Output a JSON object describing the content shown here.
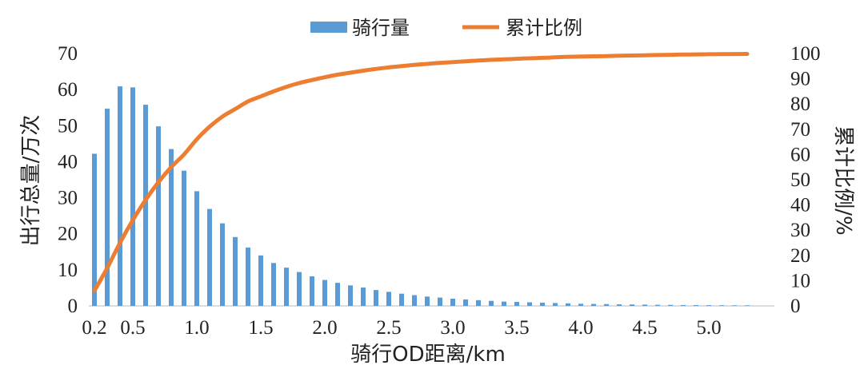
{
  "chart_data": {
    "type": "bar",
    "legend": {
      "placement": "top-center",
      "entries": [
        "骑行量",
        "累计比例"
      ]
    },
    "xlabel": "骑行OD距离/km",
    "ylabel_left": "出行总量/万次",
    "ylabel_right": "累计比例/%",
    "x": [
      0.2,
      0.3,
      0.4,
      0.5,
      0.6,
      0.7,
      0.8,
      0.9,
      1.0,
      1.1,
      1.2,
      1.3,
      1.4,
      1.5,
      1.6,
      1.7,
      1.8,
      1.9,
      2.0,
      2.1,
      2.2,
      2.3,
      2.4,
      2.5,
      2.6,
      2.7,
      2.8,
      2.9,
      3.0,
      3.1,
      3.2,
      3.3,
      3.4,
      3.5,
      3.6,
      3.7,
      3.8,
      3.9,
      4.0,
      4.1,
      4.2,
      4.3,
      4.4,
      4.5,
      4.6,
      4.7,
      4.8,
      4.9,
      5.0,
      5.1,
      5.2,
      5.3
    ],
    "x_tick_labels": [
      "0.2",
      "0.5",
      "1.0",
      "1.5",
      "2.0",
      "2.5",
      "3.0",
      "3.5",
      "4.0",
      "4.5",
      "5.0"
    ],
    "y_left_ticks": [
      "0",
      "10",
      "20",
      "30",
      "40",
      "50",
      "60",
      "70"
    ],
    "y_right_ticks": [
      "0",
      "10",
      "20",
      "30",
      "40",
      "50",
      "60",
      "70",
      "80",
      "90",
      "100"
    ],
    "ylim_left": [
      0,
      70
    ],
    "ylim_right": [
      0,
      100
    ],
    "grid": false,
    "series": [
      {
        "name": "骑行量",
        "type": "bar",
        "axis": "left",
        "color": "#5b9bd5",
        "values": [
          42.2,
          54.7,
          60.9,
          60.6,
          55.8,
          49.8,
          43.5,
          37.5,
          31.8,
          26.9,
          22.9,
          19.1,
          16.2,
          14.0,
          11.9,
          10.6,
          9.4,
          8.2,
          7.2,
          6.4,
          5.7,
          5.1,
          4.4,
          3.9,
          3.4,
          3.0,
          2.6,
          2.3,
          2.0,
          1.8,
          1.6,
          1.4,
          1.2,
          1.1,
          1.0,
          0.9,
          0.8,
          0.7,
          0.6,
          0.55,
          0.5,
          0.45,
          0.4,
          0.35,
          0.32,
          0.28,
          0.25,
          0.22,
          0.2,
          0.18,
          0.16,
          0.15
        ]
      },
      {
        "name": "累计比例",
        "type": "line",
        "axis": "right",
        "color": "#ed7d31",
        "values": [
          6,
          15,
          25,
          34,
          42,
          49,
          55,
          60,
          66,
          71,
          75,
          78,
          81,
          83,
          85,
          86.8,
          88.3,
          89.5,
          90.6,
          91.6,
          92.4,
          93.2,
          93.9,
          94.5,
          95.0,
          95.5,
          95.9,
          96.3,
          96.6,
          96.9,
          97.2,
          97.5,
          97.7,
          97.9,
          98.1,
          98.3,
          98.5,
          98.7,
          98.8,
          98.9,
          99.0,
          99.1,
          99.2,
          99.3,
          99.4,
          99.5,
          99.6,
          99.65,
          99.7,
          99.75,
          99.8,
          99.85
        ]
      }
    ]
  }
}
